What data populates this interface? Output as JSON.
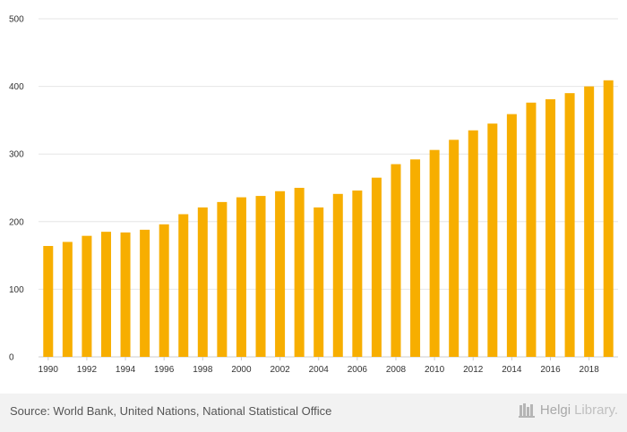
{
  "chart_data": {
    "type": "bar",
    "categories": [
      "1990",
      "1991",
      "1992",
      "1993",
      "1994",
      "1995",
      "1996",
      "1997",
      "1998",
      "1999",
      "2000",
      "2001",
      "2002",
      "2003",
      "2004",
      "2005",
      "2006",
      "2007",
      "2008",
      "2009",
      "2010",
      "2011",
      "2012",
      "2013",
      "2014",
      "2015",
      "2016",
      "2017",
      "2018",
      "2019"
    ],
    "values": [
      164,
      170,
      179,
      185,
      184,
      188,
      196,
      211,
      221,
      229,
      236,
      238,
      245,
      250,
      221,
      241,
      246,
      265,
      285,
      292,
      306,
      321,
      335,
      345,
      359,
      376,
      381,
      390,
      400,
      409
    ],
    "x_tick_labels": [
      "1990",
      "1992",
      "1994",
      "1996",
      "1998",
      "2000",
      "2002",
      "2004",
      "2006",
      "2008",
      "2010",
      "2012",
      "2014",
      "2016",
      "2018"
    ],
    "y_ticks": [
      0,
      100,
      200,
      300,
      400,
      500
    ],
    "ylim": [
      0,
      500
    ],
    "title": "",
    "xlabel": "",
    "ylabel": "",
    "bar_color": "#f7ae00",
    "grid": true
  },
  "footer": {
    "source": "Source: World Bank, United Nations, National Statistical Office",
    "brand_part1": "Helgi",
    "brand_part2": "Library."
  }
}
